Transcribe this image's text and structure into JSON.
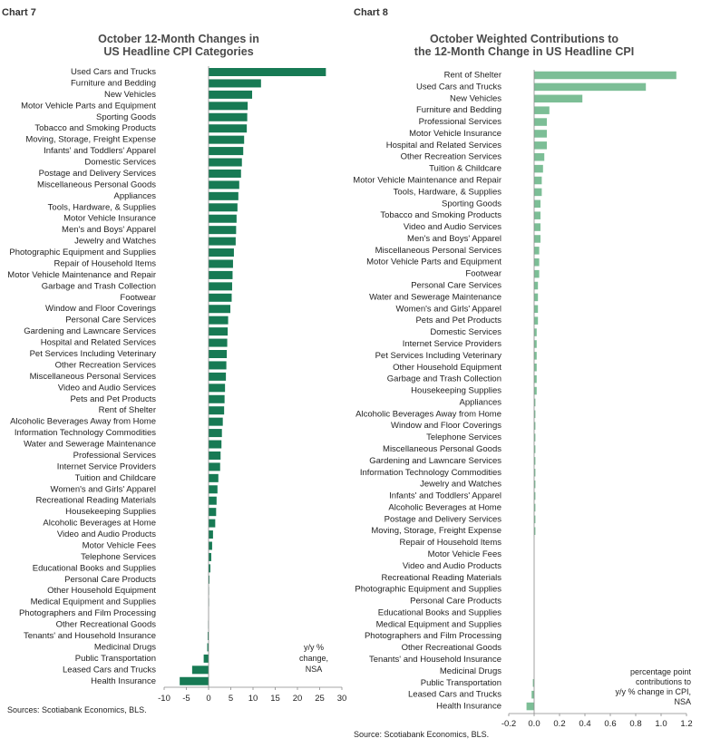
{
  "chart_data": [
    {
      "label": "Chart 7",
      "type": "bar",
      "title_lines": [
        "October 12-Month Changes in",
        "US Headline CPI Categories"
      ],
      "categories": [
        "Used Cars and Trucks",
        "Furniture and Bedding",
        "New Vehicles",
        "Motor Vehicle Parts and Equipment",
        "Sporting Goods",
        "Tobacco and Smoking Products",
        "Moving, Storage, Freight Expense",
        "Infants' and Toddlers' Apparel",
        "Domestic Services",
        "Postage and Delivery Services",
        "Miscellaneous Personal Goods",
        "Appliances",
        "Tools, Hardware, & Supplies",
        "Motor Vehicle Insurance",
        "Men's and Boys' Apparel",
        "Jewelry and Watches",
        "Photographic Equipment and Supplies",
        "Repair of Household Items",
        "Motor Vehicle Maintenance and Repair",
        "Garbage and Trash Collection",
        "Footwear",
        "Window and Floor Coverings",
        "Personal Care Services",
        "Gardening and Lawncare Services",
        "Hospital and Related Services",
        "Pet Services Including Veterinary",
        "Other Recreation Services",
        "Miscellaneous Personal Services",
        "Video and Audio Services",
        "Pets and Pet Products",
        "Rent of Shelter",
        "Alcoholic Beverages Away from Home",
        "Information Technology Commodities",
        "Water and Sewerage Maintenance",
        "Professional Services",
        "Internet Service Providers",
        "Tuition and Childcare",
        "Women's and Girls' Apparel",
        "Recreational Reading Materials",
        "Housekeeping Supplies",
        "Alcoholic Beverages at Home",
        "Video and Audio Products",
        "Motor Vehicle Fees",
        "Telephone Services",
        "Educational Books and Supplies",
        "Personal Care Products",
        "Other Household Equipment",
        "Medical Equipment and Supplies",
        "Photographers and Film Processing",
        "Other Recreational Goods",
        "Tenants' and Household Insurance",
        "Medicinal Drugs",
        "Public Transportation",
        "Leased Cars and Trucks",
        "Health Insurance"
      ],
      "values": [
        26.4,
        11.8,
        9.8,
        8.8,
        8.7,
        8.6,
        8.0,
        7.8,
        7.5,
        7.3,
        6.9,
        6.7,
        6.5,
        6.3,
        6.2,
        6.1,
        5.7,
        5.5,
        5.4,
        5.3,
        5.2,
        4.9,
        4.4,
        4.3,
        4.2,
        4.1,
        4.0,
        3.9,
        3.7,
        3.6,
        3.5,
        3.2,
        3.0,
        2.9,
        2.7,
        2.6,
        2.2,
        2.0,
        1.8,
        1.7,
        1.5,
        1.0,
        0.8,
        0.6,
        0.4,
        0.2,
        0.1,
        0.1,
        0.0,
        -0.1,
        -0.2,
        -0.3,
        -1.1,
        -3.7,
        -6.5
      ],
      "xlim": [
        -10,
        30
      ],
      "xticks": [
        -10,
        -5,
        0,
        5,
        10,
        15,
        20,
        25,
        30
      ],
      "xtick_labels": [
        "-10",
        "-5",
        "0",
        "5",
        "10",
        "15",
        "20",
        "25",
        "30"
      ],
      "annotation_lines": [
        "y/y %",
        "change,",
        "NSA"
      ],
      "source": "Sources: Scotiabank Economics, BLS.",
      "bar_color": "#177a54"
    },
    {
      "label": "Chart 8",
      "type": "bar",
      "title_lines": [
        "October Weighted Contributions to",
        "the 12-Month Change in US Headline CPI"
      ],
      "categories": [
        "Rent of Shelter",
        "Used Cars and Trucks",
        "New Vehicles",
        "Furniture and Bedding",
        "Professional Services",
        "Motor Vehicle Insurance",
        "Hospital and Related Services",
        "Other Recreation Services",
        "Tuition & Childcare",
        "Motor Vehicle Maintenance and Repair",
        "Tools, Hardware, & Supplies",
        "Sporting Goods",
        "Tobacco and Smoking Products",
        "Video and Audio Services",
        "Men's and Boys' Apparel",
        "Miscellaneous Personal Services",
        "Motor Vehicle Parts and Equipment",
        "Footwear",
        "Personal Care Services",
        "Water and Sewerage Maintenance",
        "Women's and Girls' Apparel",
        "Pets and Pet Products",
        "Domestic Services",
        "Internet Service Providers",
        "Pet Services Including Veterinary",
        "Other Household Equipment",
        "Garbage and Trash Collection",
        "Housekeeping Supplies",
        "Appliances",
        "Alcoholic Beverages Away from Home",
        "Window and Floor Coverings",
        "Telephone Services",
        "Miscellaneous Personal Goods",
        "Gardening and Lawncare Services",
        "Information Technology Commodities",
        "Jewelry and Watches",
        "Infants' and Toddlers' Apparel",
        "Alcoholic Beverages at Home",
        "Postage and Delivery Services",
        "Moving, Storage, Freight Expense",
        "Repair of Household Items",
        "Motor Vehicle Fees",
        "Video and Audio Products",
        "Recreational Reading Materials",
        "Photographic Equipment and Supplies",
        "Personal Care Products",
        "Educational Books and Supplies",
        "Medical Equipment and Supplies",
        "Photographers and Film Processing",
        "Other Recreational Goods",
        "Tenants' and Household Insurance",
        "Medicinal Drugs",
        "Public Transportation",
        "Leased Cars and Trucks",
        "Health Insurance"
      ],
      "values": [
        1.12,
        0.88,
        0.38,
        0.12,
        0.1,
        0.1,
        0.1,
        0.08,
        0.07,
        0.06,
        0.06,
        0.05,
        0.05,
        0.05,
        0.05,
        0.04,
        0.04,
        0.04,
        0.03,
        0.03,
        0.03,
        0.03,
        0.02,
        0.02,
        0.02,
        0.02,
        0.02,
        0.02,
        0.01,
        0.01,
        0.01,
        0.01,
        0.01,
        0.01,
        0.01,
        0.01,
        0.01,
        0.01,
        0.01,
        0.01,
        0.0,
        0.0,
        0.0,
        0.0,
        0.0,
        0.0,
        0.0,
        0.0,
        0.0,
        0.0,
        0.0,
        0.0,
        -0.01,
        -0.02,
        -0.06
      ],
      "xlim": [
        -0.2,
        1.2
      ],
      "xticks": [
        -0.2,
        0.0,
        0.2,
        0.4,
        0.6,
        0.8,
        1.0,
        1.2
      ],
      "xtick_labels": [
        "-0.2",
        "0.0",
        "0.2",
        "0.4",
        "0.6",
        "0.8",
        "1.0",
        "1.2"
      ],
      "annotation_lines": [
        "percentage point",
        "contributions to",
        "y/y % change in CPI,",
        "NSA"
      ],
      "source": "Source: Scotiabank Economics, BLS.",
      "bar_color": "#7cbe96"
    }
  ]
}
